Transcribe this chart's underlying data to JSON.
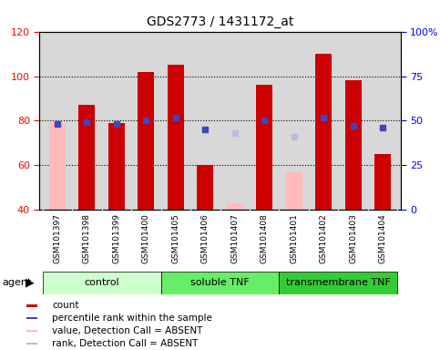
{
  "title": "GDS2773 / 1431172_at",
  "samples": [
    "GSM101397",
    "GSM101398",
    "GSM101399",
    "GSM101400",
    "GSM101405",
    "GSM101406",
    "GSM101407",
    "GSM101408",
    "GSM101401",
    "GSM101402",
    "GSM101403",
    "GSM101404"
  ],
  "groups": [
    {
      "label": "control",
      "start": 0,
      "end": 4
    },
    {
      "label": "soluble TNF",
      "start": 4,
      "end": 8
    },
    {
      "label": "transmembrane TNF",
      "start": 8,
      "end": 12
    }
  ],
  "group_colors": [
    "#ccffcc",
    "#66ee66",
    "#33cc33"
  ],
  "bar_data": [
    {
      "value": 79,
      "bar_color": "#ffbbbb"
    },
    {
      "value": 87,
      "bar_color": "#cc0000"
    },
    {
      "value": 79,
      "bar_color": "#cc0000"
    },
    {
      "value": 102,
      "bar_color": "#cc0000"
    },
    {
      "value": 105,
      "bar_color": "#cc0000"
    },
    {
      "value": 60,
      "bar_color": "#cc0000"
    },
    {
      "value": 43,
      "bar_color": "#ffbbbb"
    },
    {
      "value": 96,
      "bar_color": "#cc0000"
    },
    {
      "value": 57,
      "bar_color": "#ffbbbb"
    },
    {
      "value": 110,
      "bar_color": "#cc0000"
    },
    {
      "value": 98,
      "bar_color": "#cc0000"
    },
    {
      "value": 65,
      "bar_color": "#cc0000"
    }
  ],
  "rank_data": [
    {
      "value": 48,
      "color": "#4444bb"
    },
    {
      "value": 49,
      "color": "#4444bb"
    },
    {
      "value": 48,
      "color": "#4444bb"
    },
    {
      "value": 50,
      "color": "#4444bb"
    },
    {
      "value": 52,
      "color": "#4444bb"
    },
    {
      "value": 45,
      "color": "#4444bb"
    },
    {
      "value": 43,
      "color": "#bbbbdd"
    },
    {
      "value": 50,
      "color": "#4444bb"
    },
    {
      "value": 41,
      "color": "#bbbbdd"
    },
    {
      "value": 52,
      "color": "#4444bb"
    },
    {
      "value": 47,
      "color": "#4444bb"
    },
    {
      "value": 46,
      "color": "#4444bb"
    }
  ],
  "ylim": [
    40,
    120
  ],
  "y2lim": [
    0,
    100
  ],
  "yticks_left": [
    40,
    60,
    80,
    100,
    120
  ],
  "yticks_right": [
    0,
    25,
    50,
    75,
    100
  ],
  "bar_bottom": 40,
  "bar_width": 0.55,
  "legend_items": [
    {
      "color": "#cc0000",
      "label": "count"
    },
    {
      "color": "#4444bb",
      "label": "percentile rank within the sample"
    },
    {
      "color": "#ffbbbb",
      "label": "value, Detection Call = ABSENT"
    },
    {
      "color": "#bbbbdd",
      "label": "rank, Detection Call = ABSENT"
    }
  ],
  "agent_label": "agent",
  "plot_bg": "#d8d8d8",
  "fig_bg": "#ffffff",
  "xlabel_bg": "#c8c8c8"
}
